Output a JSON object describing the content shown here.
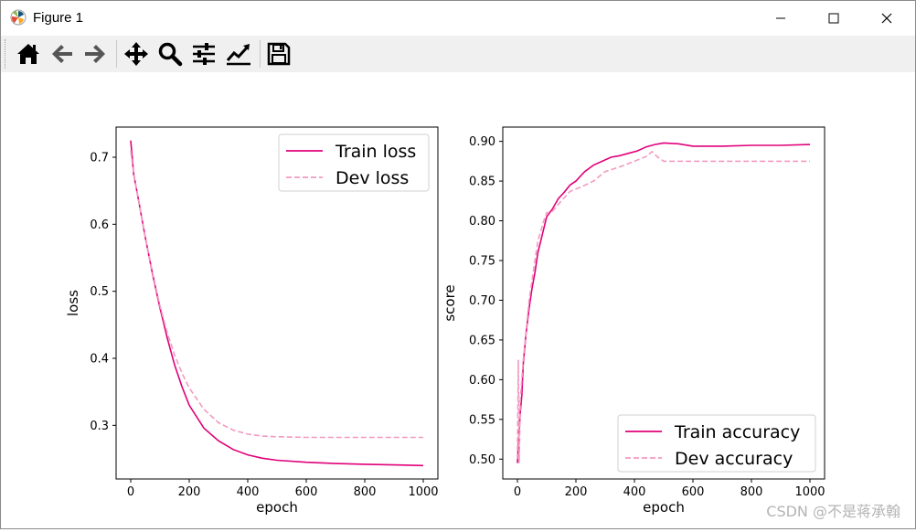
{
  "window": {
    "title": "Figure 1"
  },
  "toolbar": {
    "buttons": [
      {
        "name": "home-icon"
      },
      {
        "name": "back-arrow-icon"
      },
      {
        "name": "forward-arrow-icon"
      },
      {
        "name": "pan-icon"
      },
      {
        "name": "zoom-icon"
      },
      {
        "name": "configure-subplots-icon"
      },
      {
        "name": "edit-axis-icon"
      },
      {
        "name": "save-icon"
      }
    ]
  },
  "colors": {
    "train": "#e0007a",
    "dev": "#f29ac0"
  },
  "watermark": "CSDN @不是蒋承翰",
  "chart_data": [
    {
      "type": "line",
      "xlabel": "epoch",
      "ylabel": "loss",
      "xlim": [
        -50,
        1050
      ],
      "ylim": [
        0.22,
        0.745
      ],
      "xticks": [
        0,
        200,
        400,
        600,
        800,
        1000
      ],
      "yticks": [
        0.3,
        0.4,
        0.5,
        0.6,
        0.7
      ],
      "ytick_labels": [
        "0.3",
        "0.4",
        "0.5",
        "0.6",
        "0.7"
      ],
      "legend": "top-right",
      "series": [
        {
          "name": "Train loss",
          "style": "solid",
          "x": [
            0,
            10,
            25,
            50,
            75,
            100,
            125,
            150,
            175,
            200,
            250,
            300,
            350,
            400,
            450,
            500,
            600,
            700,
            800,
            900,
            1000
          ],
          "y": [
            0.725,
            0.675,
            0.64,
            0.58,
            0.525,
            0.475,
            0.43,
            0.39,
            0.358,
            0.33,
            0.296,
            0.277,
            0.264,
            0.256,
            0.251,
            0.248,
            0.245,
            0.243,
            0.242,
            0.241,
            0.24
          ]
        },
        {
          "name": "Dev loss",
          "style": "dashed",
          "x": [
            0,
            10,
            25,
            50,
            75,
            100,
            125,
            150,
            175,
            200,
            250,
            300,
            350,
            400,
            450,
            500,
            600,
            700,
            800,
            900,
            1000
          ],
          "y": [
            0.71,
            0.675,
            0.64,
            0.58,
            0.527,
            0.478,
            0.438,
            0.405,
            0.378,
            0.356,
            0.324,
            0.304,
            0.293,
            0.287,
            0.284,
            0.283,
            0.282,
            0.282,
            0.282,
            0.282,
            0.282
          ]
        }
      ]
    },
    {
      "type": "line",
      "xlabel": "epoch",
      "ylabel": "score",
      "xlim": [
        -50,
        1050
      ],
      "ylim": [
        0.475,
        0.918
      ],
      "xticks": [
        0,
        200,
        400,
        600,
        800,
        1000
      ],
      "yticks": [
        0.5,
        0.55,
        0.6,
        0.65,
        0.7,
        0.75,
        0.8,
        0.85,
        0.9
      ],
      "ytick_labels": [
        "0.50",
        "0.55",
        "0.60",
        "0.65",
        "0.70",
        "0.75",
        "0.80",
        "0.85",
        "0.90"
      ],
      "legend": "lower-right",
      "series": [
        {
          "name": "Train accuracy",
          "style": "solid",
          "x": [
            0,
            5,
            10,
            15,
            20,
            30,
            40,
            50,
            60,
            70,
            80,
            90,
            100,
            120,
            140,
            160,
            180,
            200,
            230,
            260,
            290,
            320,
            350,
            380,
            410,
            440,
            470,
            500,
            550,
            600,
            700,
            800,
            900,
            1000
          ],
          "y": [
            0.495,
            0.53,
            0.56,
            0.58,
            0.62,
            0.66,
            0.69,
            0.715,
            0.735,
            0.76,
            0.775,
            0.79,
            0.805,
            0.815,
            0.828,
            0.836,
            0.845,
            0.85,
            0.862,
            0.87,
            0.875,
            0.88,
            0.882,
            0.885,
            0.888,
            0.893,
            0.896,
            0.898,
            0.897,
            0.894,
            0.894,
            0.895,
            0.895,
            0.896
          ]
        },
        {
          "name": "Dev accuracy",
          "style": "dashed",
          "x": [
            0,
            3,
            6,
            10,
            15,
            20,
            30,
            40,
            50,
            60,
            70,
            80,
            90,
            100,
            120,
            150,
            180,
            220,
            260,
            300,
            350,
            400,
            440,
            460,
            480,
            500,
            600,
            700,
            800,
            900,
            1000
          ],
          "y": [
            0.5,
            0.625,
            0.495,
            0.575,
            0.6,
            0.625,
            0.662,
            0.7,
            0.725,
            0.75,
            0.775,
            0.787,
            0.8,
            0.81,
            0.812,
            0.825,
            0.837,
            0.843,
            0.85,
            0.862,
            0.868,
            0.875,
            0.881,
            0.887,
            0.88,
            0.875,
            0.875,
            0.875,
            0.875,
            0.875,
            0.875
          ]
        }
      ]
    }
  ]
}
